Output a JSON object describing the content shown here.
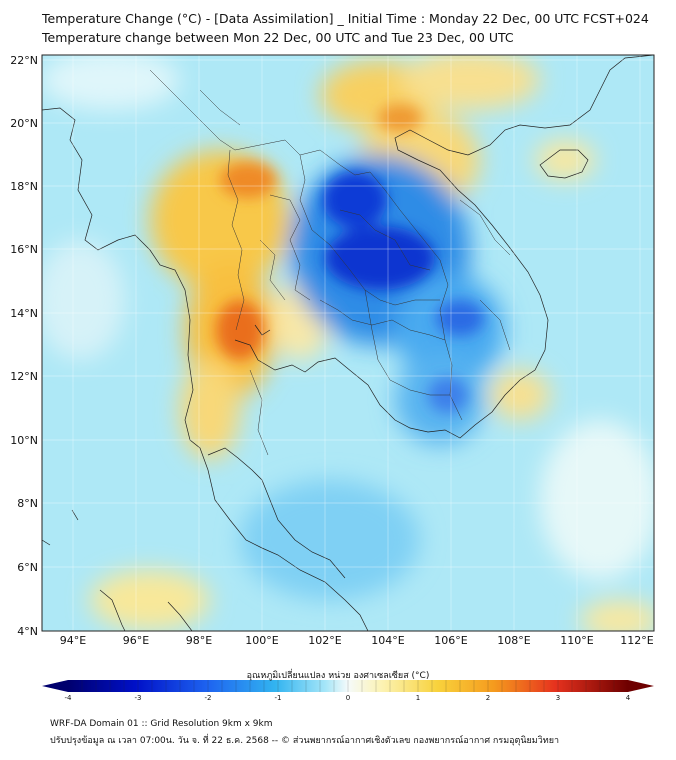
{
  "title_line1": "Temperature Change (°C) - [Data Assimilation] _ Initial Time : Monday 22 Dec, 00 UTC FCST+024",
  "title_line2": "Temperature change between Mon 22 Dec, 00 UTC and Tue 23 Dec, 00 UTC",
  "lat_labels": [
    "22°N",
    "20°N",
    "18°N",
    "16°N",
    "14°N",
    "12°N",
    "10°N",
    "8°N",
    "6°N",
    "4°N"
  ],
  "lon_labels": [
    "94°E",
    "96°E",
    "98°E",
    "100°E",
    "102°E",
    "104°E",
    "106°E",
    "108°E",
    "110°E",
    "112°E"
  ],
  "colorbar": {
    "title": "อุณหภูมิเปลี่ยนแปลง หน่วย องศาเซลเซียส (°C)",
    "ticks": [
      "-4",
      "-3",
      "-2",
      "-1",
      "0",
      "1",
      "2",
      "3",
      "4"
    ],
    "min": -4,
    "max": 4
  },
  "colors": {
    "ocean_base": "#aee8f6",
    "strong_cold": "#0a3ad6",
    "cold": "#3fa8ec",
    "warm": "#f8c23a",
    "hot": "#ef7a1e",
    "neutral": "#f2f6ea"
  },
  "footer_line1": "WRF-DA Domain 01 :: Grid Resolution 9km x 9km",
  "footer_line2": "ปรับปรุงข้อมูล ณ เวลา 07:00น. วัน จ. ที่ 22 ธ.ค. 2568 -- © ส่วนพยากรณ์อากาศเชิงตัวเลข กองพยากรณ์อากาศ กรมอุตุนิยมวิทยา"
}
